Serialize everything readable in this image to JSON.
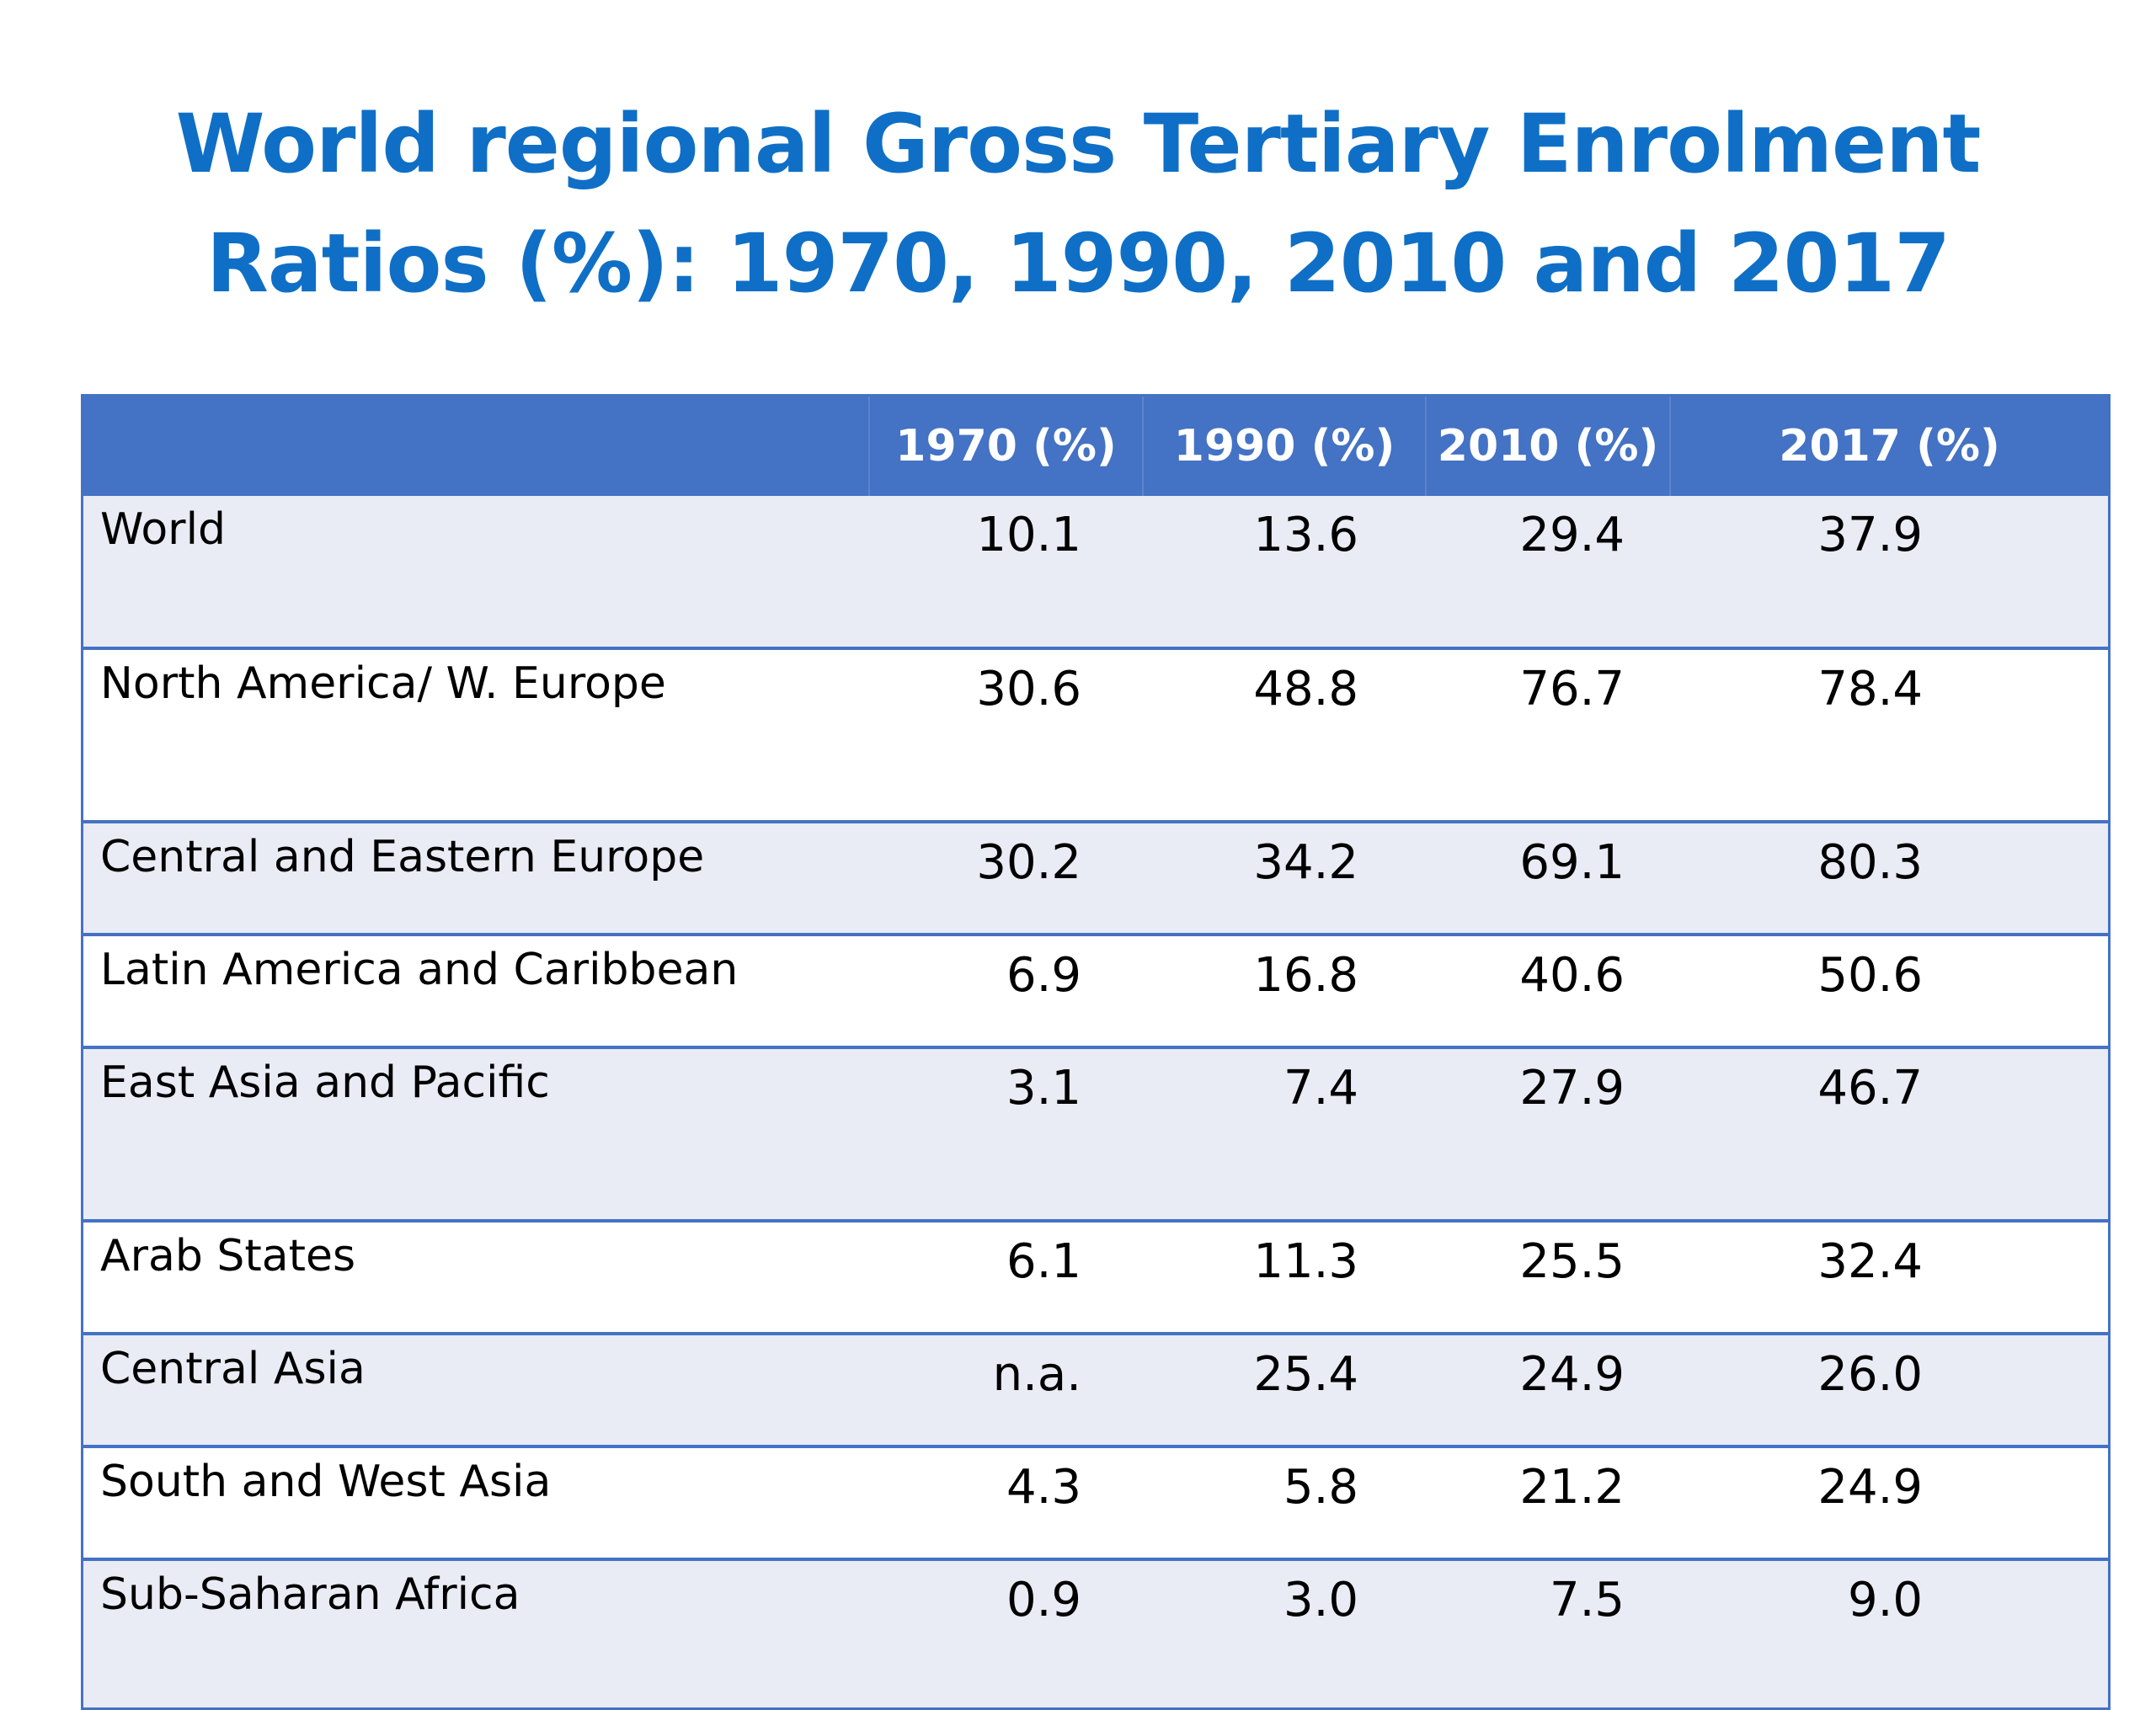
{
  "title": {
    "line1": "World regional Gross Tertiary Enrolment",
    "line2": "Ratios (%): 1970, 1990, 2010 and 2017"
  },
  "table": {
    "headers": [
      "",
      "1970 (%)",
      "1990 (%)",
      "2010 (%)",
      "2017 (%)"
    ],
    "rows": [
      {
        "region": "World",
        "v1970": "10.1",
        "v1990": "13.6",
        "v2010": "29.4",
        "v2017": "37.9"
      },
      {
        "region": "North America/ W. Europe",
        "v1970": "30.6",
        "v1990": "48.8",
        "v2010": "76.7",
        "v2017": "78.4"
      },
      {
        "region": "Central and Eastern Europe",
        "v1970": "30.2",
        "v1990": "34.2",
        "v2010": "69.1",
        "v2017": "80.3"
      },
      {
        "region": "Latin America and Caribbean",
        "v1970": "6.9",
        "v1990": "16.8",
        "v2010": "40.6",
        "v2017": "50.6"
      },
      {
        "region": "East Asia and Pacific",
        "v1970": "3.1",
        "v1990": "7.4",
        "v2010": "27.9",
        "v2017": "46.7"
      },
      {
        "region": "Arab States",
        "v1970": "6.1",
        "v1990": "11.3",
        "v2010": "25.5",
        "v2017": "32.4"
      },
      {
        "region": "Central Asia",
        "v1970": "n.a.",
        "v1990": "25.4",
        "v2010": "24.9",
        "v2017": "26.0"
      },
      {
        "region": "South and West Asia",
        "v1970": "4.3",
        "v1990": "5.8",
        "v2010": "21.2",
        "v2017": "24.9"
      },
      {
        "region": "Sub-Saharan Africa",
        "v1970": "0.9",
        "v1990": "3.0",
        "v2010": "7.5",
        "v2017": "9.0"
      }
    ]
  },
  "colors": {
    "title": "#0f6fc6",
    "header_bg": "#4472c4",
    "row_band": "#e9ebf5",
    "border": "#4472c4"
  }
}
